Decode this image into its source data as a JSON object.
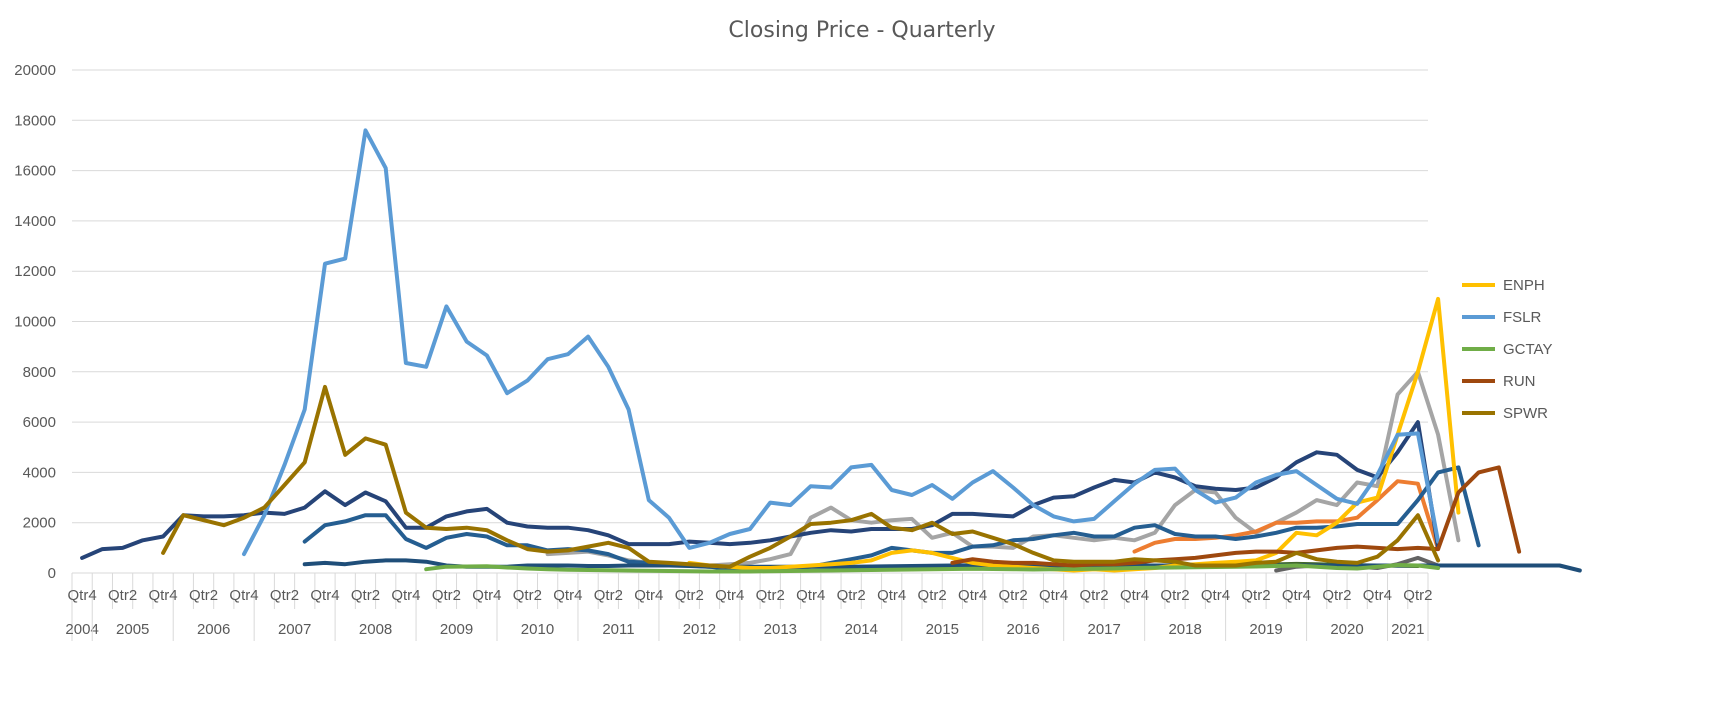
{
  "chart_data": {
    "type": "line",
    "title": "Closing Price - Quarterly",
    "xlabel": "",
    "ylabel": "",
    "ylim": [
      0,
      20000
    ],
    "yticks": [
      "0",
      "2000",
      "4000",
      "6000",
      "8000",
      "10000",
      "12000",
      "14000",
      "16000",
      "18000",
      "20000"
    ],
    "grid": true,
    "legend_position": "right",
    "years": [
      {
        "label": "2004",
        "quarters": [
          4
        ]
      },
      {
        "label": "2005",
        "quarters": [
          1,
          2,
          3,
          4
        ]
      },
      {
        "label": "2006",
        "quarters": [
          1,
          2,
          3,
          4
        ]
      },
      {
        "label": "2007",
        "quarters": [
          1,
          2,
          3,
          4
        ]
      },
      {
        "label": "2008",
        "quarters": [
          1,
          2,
          3,
          4
        ]
      },
      {
        "label": "2009",
        "quarters": [
          1,
          2,
          3,
          4
        ]
      },
      {
        "label": "2010",
        "quarters": [
          1,
          2,
          3,
          4
        ]
      },
      {
        "label": "2011",
        "quarters": [
          1,
          2,
          3,
          4
        ]
      },
      {
        "label": "2012",
        "quarters": [
          1,
          2,
          3,
          4
        ]
      },
      {
        "label": "2013",
        "quarters": [
          1,
          2,
          3,
          4
        ]
      },
      {
        "label": "2014",
        "quarters": [
          1,
          2,
          3,
          4
        ]
      },
      {
        "label": "2015",
        "quarters": [
          1,
          2,
          3,
          4
        ]
      },
      {
        "label": "2016",
        "quarters": [
          1,
          2,
          3,
          4
        ]
      },
      {
        "label": "2017",
        "quarters": [
          1,
          2,
          3,
          4
        ]
      },
      {
        "label": "2018",
        "quarters": [
          1,
          2,
          3,
          4
        ]
      },
      {
        "label": "2019",
        "quarters": [
          1,
          2,
          3,
          4
        ]
      },
      {
        "label": "2020",
        "quarters": [
          1,
          2,
          3,
          4
        ]
      },
      {
        "label": "2021",
        "quarters": [
          1,
          2
        ]
      }
    ],
    "x_tick_labels": [
      "Qtr4",
      "Qtr2",
      "Qtr4",
      "Qtr2",
      "Qtr4",
      "Qtr2",
      "Qtr4",
      "Qtr2",
      "Qtr4",
      "Qtr2",
      "Qtr4",
      "Qtr2",
      "Qtr4",
      "Qtr2",
      "Qtr4",
      "Qtr2",
      "Qtr4",
      "Qtr2",
      "Qtr4",
      "Qtr2",
      "Qtr4",
      "Qtr2",
      "Qtr4",
      "Qtr2",
      "Qtr4",
      "Qtr2",
      "Qtr4",
      "Qtr2",
      "Qtr4",
      "Qtr2",
      "Qtr4",
      "Qtr2",
      "Qtr4",
      "Qtr2",
      "Qtr4"
    ],
    "series": [
      {
        "name": "ENPH",
        "color": "#FFC000",
        "legend": true,
        "start": "2012 Q2",
        "values": [
          400,
          300,
          250,
          200,
          200,
          250,
          300,
          350,
          400,
          500,
          800,
          900,
          800,
          600,
          400,
          300,
          250,
          200,
          150,
          100,
          150,
          100,
          150,
          200,
          300,
          350,
          400,
          450,
          500,
          800,
          1600,
          1500,
          2000,
          2800,
          3000,
          5500,
          8000,
          10900,
          2400
        ]
      },
      {
        "name": "FSLR",
        "color": "#5B9BD5",
        "legend": true,
        "start": "2006 Q4",
        "values": [
          750,
          2300,
          4300,
          6500,
          12300,
          12500,
          17600,
          16100,
          8350,
          8200,
          10600,
          9200,
          8650,
          7150,
          7650,
          8500,
          8700,
          9400,
          8200,
          6500,
          2900,
          2200,
          1000,
          1200,
          1550,
          1750,
          2800,
          2700,
          3450,
          3400,
          4200,
          4300,
          3300,
          3100,
          3500,
          2950,
          3600,
          4050,
          3400,
          2700,
          2250,
          2050,
          2150,
          2850,
          3550,
          4100,
          4150,
          3300,
          2800,
          3000,
          3600,
          3900,
          4050,
          3500,
          2950,
          2750,
          3900,
          5500,
          5550,
          1250
        ]
      },
      {
        "name": "GCTAY",
        "color": "#70AD47",
        "legend": true,
        "start": "2009 Q1",
        "values": [
          150,
          250,
          260,
          270,
          220,
          180,
          150,
          130,
          120,
          110,
          100,
          90,
          80,
          70,
          60,
          60,
          60,
          70,
          80,
          90,
          100,
          110,
          120,
          130,
          140,
          150,
          160,
          170,
          160,
          150,
          140,
          150,
          160,
          170,
          180,
          200,
          210,
          220,
          230,
          240,
          250,
          260,
          280,
          300,
          250,
          200,
          180,
          250,
          320,
          300,
          200
        ]
      },
      {
        "name": "RUN",
        "color": "#9E480E",
        "legend": true,
        "start": "2015 Q3",
        "values": [
          400,
          550,
          450,
          400,
          400,
          350,
          300,
          350,
          350,
          400,
          500,
          550,
          600,
          700,
          800,
          850,
          850,
          800,
          900,
          1000,
          1050,
          1000,
          950,
          1000,
          950,
          3200,
          4000,
          4200,
          850
        ]
      },
      {
        "name": "SPWR",
        "color": "#997300",
        "legend": true,
        "start": "2005 Q4",
        "values": [
          800,
          2300,
          2100,
          1900,
          2200,
          2600,
          3500,
          4400,
          7400,
          4700,
          5350,
          5100,
          2400,
          1800,
          1750,
          1800,
          1700,
          1300,
          950,
          850,
          900,
          1050,
          1200,
          1000,
          450,
          400,
          350,
          300,
          250,
          650,
          1000,
          1450,
          1950,
          2000,
          2100,
          2350,
          1800,
          1700,
          2000,
          1550,
          1650,
          1400,
          1150,
          800,
          500,
          450,
          450,
          450,
          550,
          500,
          450,
          300,
          300,
          300,
          400,
          450,
          800,
          550,
          450,
          400,
          650,
          1300,
          2300,
          500
        ]
      },
      {
        "name": "",
        "color": "#A5A5A5",
        "legend": false,
        "start": "2010 Q3",
        "values": [
          750,
          800,
          850,
          700,
          500,
          400,
          350,
          300,
          300,
          350,
          400,
          550,
          750,
          2200,
          2600,
          2100,
          2000,
          2100,
          2150,
          1400,
          1600,
          1050,
          1050,
          1000,
          1450,
          1500,
          1400,
          1300,
          1400,
          1300,
          1600,
          2700,
          3300,
          3200,
          2200,
          1600,
          2000,
          2400,
          2900,
          2700,
          3600,
          3450,
          7100,
          8000,
          5500,
          1300
        ]
      },
      {
        "name": "",
        "color": "#ED7D31",
        "legend": false,
        "start": "2017 Q4",
        "values": [
          850,
          1200,
          1350,
          1350,
          1400,
          1500,
          1650,
          2000,
          2000,
          2050,
          2050,
          2200,
          2900,
          3650,
          3550,
          950
        ]
      },
      {
        "name": "",
        "color": "#264478",
        "legend": false,
        "start": "2004 Q4",
        "values": [
          600,
          950,
          1000,
          1300,
          1450,
          2300,
          2250,
          2250,
          2300,
          2400,
          2350,
          2600,
          3250,
          2700,
          3200,
          2850,
          1800,
          1800,
          2250,
          2450,
          2550,
          2000,
          1850,
          1800,
          1800,
          1700,
          1500,
          1150,
          1150,
          1150,
          1250,
          1200,
          1150,
          1200,
          1300,
          1450,
          1600,
          1700,
          1650,
          1750,
          1750,
          1750,
          1900,
          2350,
          2350,
          2300,
          2250,
          2700,
          3000,
          3050,
          3400,
          3700,
          3600,
          4000,
          3800,
          3450,
          3350,
          3300,
          3400,
          3800,
          4400,
          4800,
          4700,
          4100,
          3800,
          4800,
          6000,
          1000
        ]
      },
      {
        "name": "",
        "color": "#255E91",
        "legend": false,
        "start": "2007 Q3",
        "values": [
          1250,
          1900,
          2050,
          2300,
          2300,
          1350,
          1000,
          1400,
          1550,
          1450,
          1100,
          1100,
          900,
          950,
          900,
          750,
          450,
          400,
          350,
          300,
          250,
          150,
          100,
          100,
          150,
          250,
          400,
          550,
          700,
          1000,
          900,
          800,
          800,
          1050,
          1100,
          1300,
          1350,
          1500,
          1600,
          1450,
          1450,
          1800,
          1900,
          1550,
          1450,
          1450,
          1350,
          1450,
          1600,
          1800,
          1800,
          1850,
          1950,
          1950,
          1950,
          2900,
          4000,
          4200,
          1100
        ]
      },
      {
        "name": "",
        "color": "#43682B",
        "legend": false,
        "start": "2016 Q1",
        "values": [
          180,
          190,
          200,
          210,
          220,
          230,
          240,
          250,
          260,
          270,
          280,
          290,
          300,
          320,
          340,
          360,
          350,
          330,
          310,
          300,
          290,
          280
        ]
      },
      {
        "name": "",
        "color": "#636363",
        "legend": false,
        "start": "2019 Q3",
        "values": [
          100,
          250,
          300,
          280,
          250,
          200,
          350,
          600,
          300
        ]
      },
      {
        "name": "",
        "color": "#1F4E79",
        "legend": false,
        "start": "2007 Q3",
        "values": [
          350,
          400,
          350,
          450,
          500,
          500,
          450,
          300,
          250,
          250,
          250,
          300,
          300,
          300,
          280,
          280,
          300,
          300,
          300,
          280,
          250,
          250,
          250,
          250,
          250,
          250,
          250,
          250,
          260,
          270,
          280,
          290,
          300,
          310,
          300,
          300,
          300,
          300,
          300,
          300,
          300,
          300,
          300,
          300,
          300,
          300,
          300,
          300,
          300,
          300,
          300,
          300,
          300,
          300,
          300,
          300,
          300,
          300,
          300,
          300,
          300,
          300,
          300,
          100
        ]
      }
    ]
  }
}
